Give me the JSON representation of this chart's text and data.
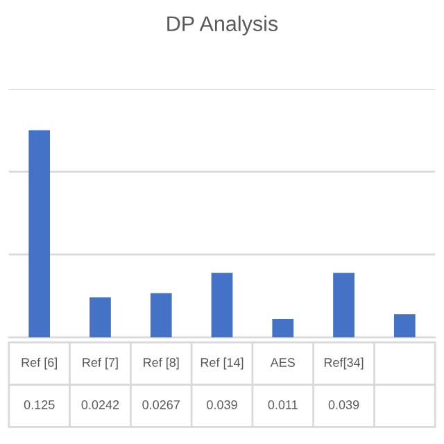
{
  "chart_data": {
    "type": "bar",
    "title": "DP Analysis",
    "categories": [
      "Ref [6]",
      "Ref [7]",
      "Ref [8]",
      "Ref [14]",
      "AES",
      "Ref[34]",
      null
    ],
    "values": [
      0.125,
      0.0242,
      0.0267,
      0.039,
      0.011,
      0.039,
      0.014
    ],
    "value_labels": [
      "0.125",
      "0.0242",
      "0.0267",
      "0.039",
      "0.011",
      "0.039",
      null
    ],
    "color": "#4472c4",
    "ylim": [
      0,
      0.15
    ],
    "yticks": [
      {
        "value": 0,
        "label": null
      },
      {
        "value": 0.05,
        "label": null
      },
      {
        "value": 0.1,
        "label": null
      },
      {
        "value": 0.15,
        "label": null
      }
    ],
    "grid": "y"
  }
}
